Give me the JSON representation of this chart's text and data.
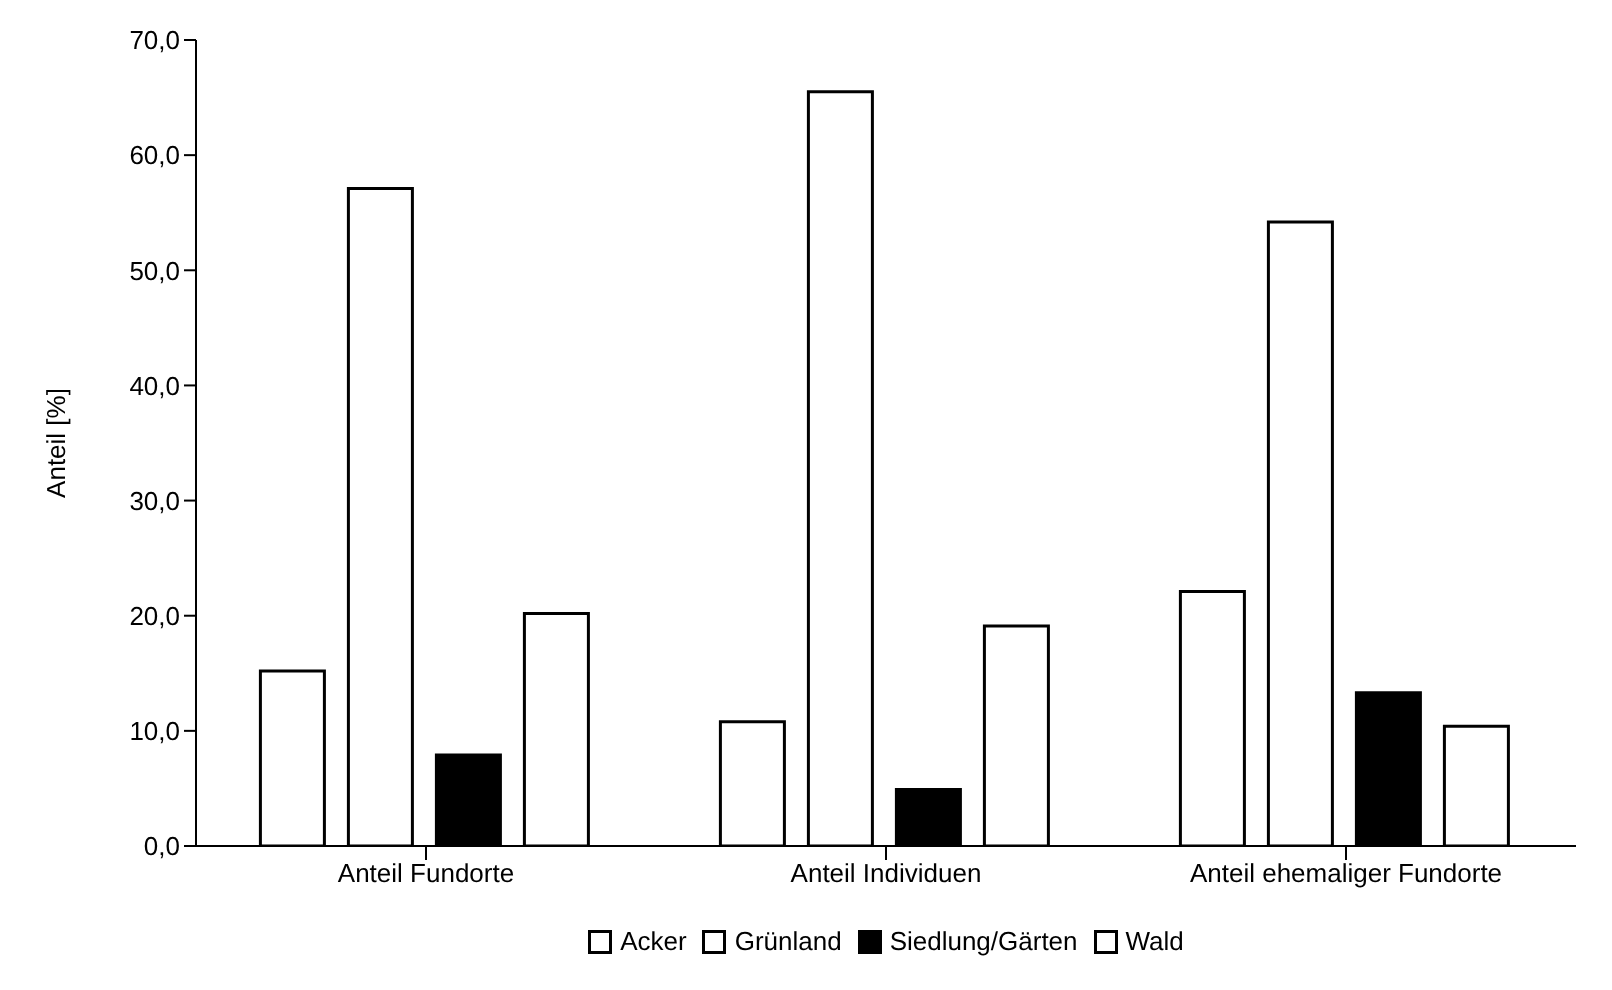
{
  "chart_data": {
    "type": "bar",
    "ylabel": "Anteil [%]",
    "categories": [
      "Anteil Fundorte",
      "Anteil Individuen",
      "Anteil ehemaliger Fundorte"
    ],
    "series": [
      {
        "name": "Acker",
        "color": "#ffffff",
        "values": [
          15.2,
          10.8,
          22.1
        ]
      },
      {
        "name": "Grünland",
        "color": "#ffffff",
        "values": [
          57.1,
          65.5,
          54.2
        ]
      },
      {
        "name": "Siedlung/Gärten",
        "color": "#000000",
        "values": [
          7.9,
          4.9,
          13.3
        ]
      },
      {
        "name": "Wald",
        "color": "#ffffff",
        "values": [
          20.2,
          19.1,
          10.4
        ]
      }
    ],
    "ylim": [
      0,
      70
    ],
    "yticks": [
      {
        "value": 0,
        "label": "0,0"
      },
      {
        "value": 10,
        "label": "10,0"
      },
      {
        "value": 20,
        "label": "20,0"
      },
      {
        "value": 30,
        "label": "30,0"
      },
      {
        "value": 40,
        "label": "40,0"
      },
      {
        "value": 50,
        "label": "50,0"
      },
      {
        "value": 60,
        "label": "60,0"
      },
      {
        "value": 70,
        "label": "70,0"
      }
    ],
    "grid": false,
    "legend": "bottom"
  }
}
